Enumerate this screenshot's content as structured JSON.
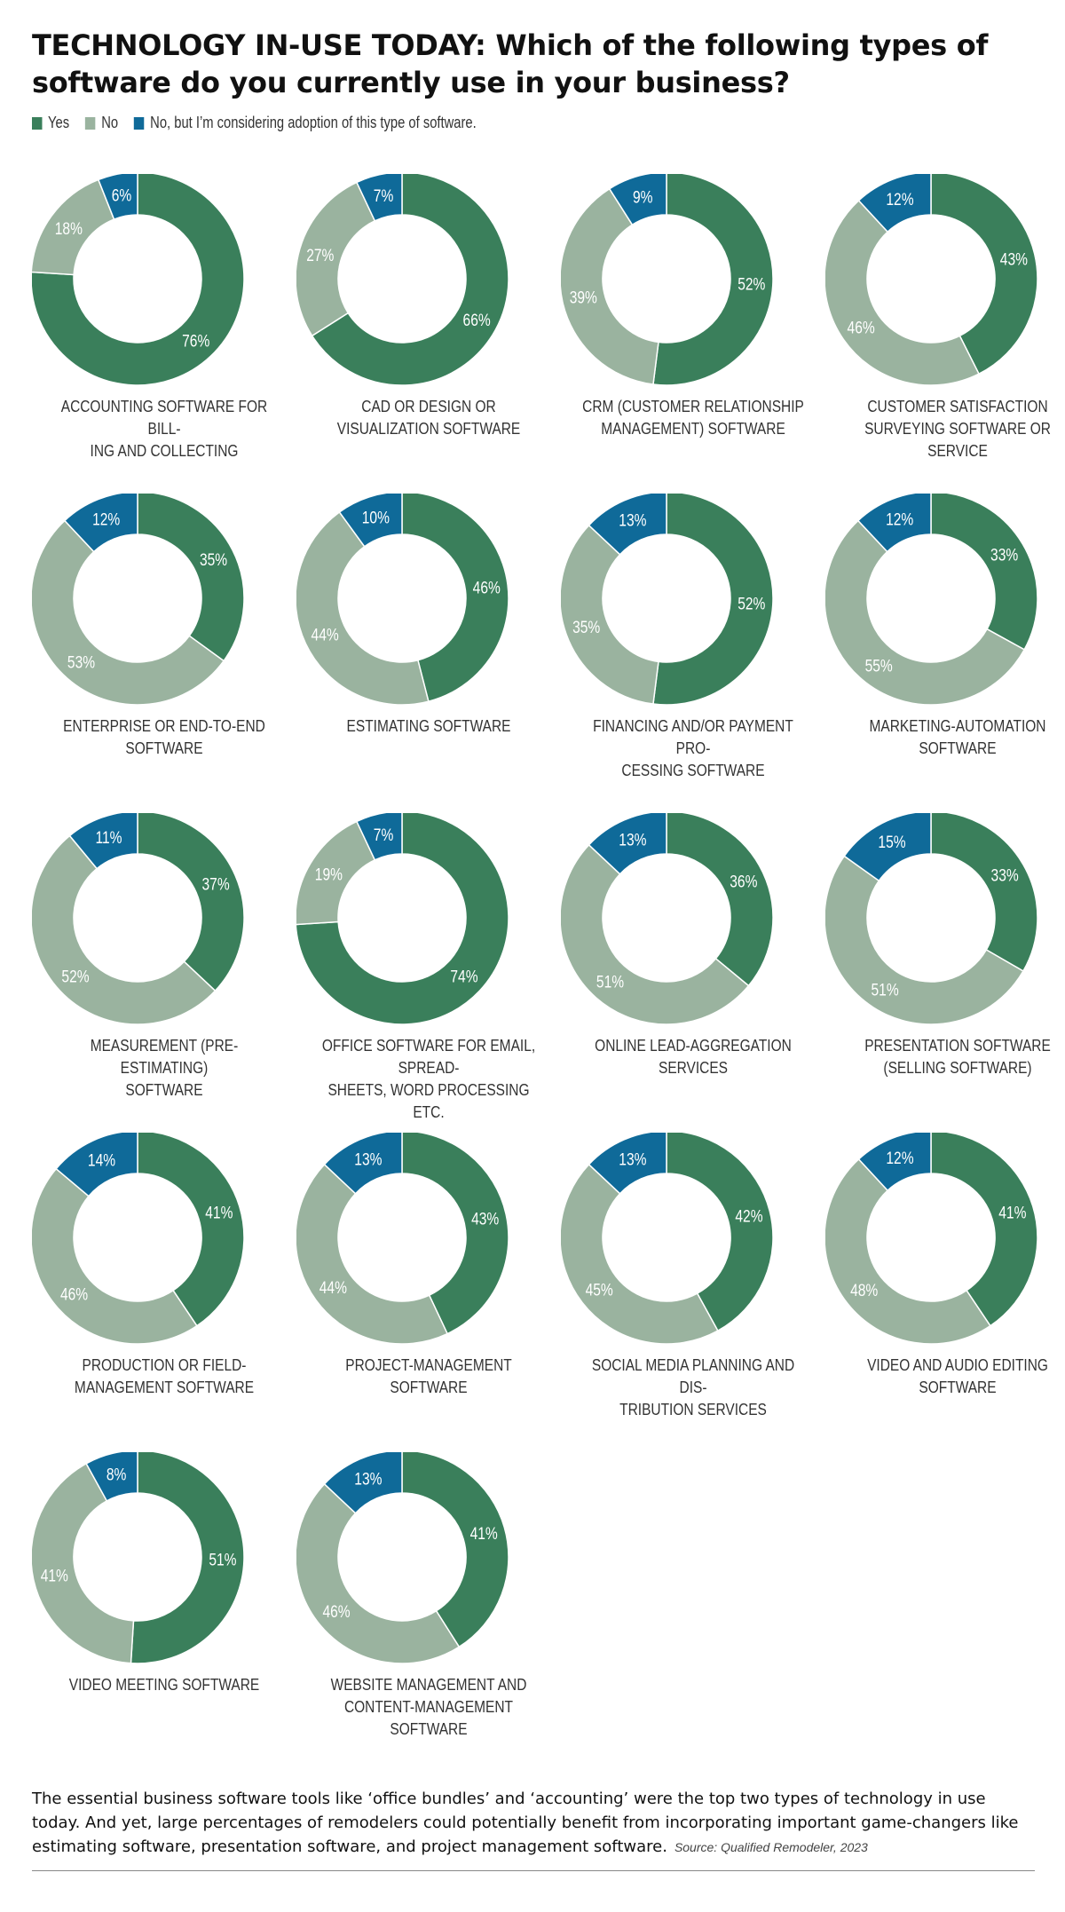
{
  "title": {
    "lead": "TECHNOLOGY IN-USE TODAY:",
    "rest": "Which of the following types of software do you currently use in your business?"
  },
  "colors": {
    "yes": "#3a7f5b",
    "no": "#9ab39f",
    "considering": "#0f6a99"
  },
  "legend": {
    "yes": "Yes",
    "no": "No",
    "considering": "No, but I’m considering adoption of this type of software."
  },
  "chart_data": {
    "type": "pie",
    "variant": "donut",
    "series_names": [
      "Yes",
      "No",
      "No, but I’m considering adoption of this type of software."
    ],
    "charts": [
      {
        "label": "ACCOUNTING SOFTWARE FOR BILL-\nING AND COLLECTING",
        "values": [
          76,
          18,
          6
        ]
      },
      {
        "label": "CAD OR DESIGN OR\nVISUALIZATION SOFTWARE",
        "values": [
          66,
          27,
          7
        ]
      },
      {
        "label": "CRM (CUSTOMER RELATIONSHIP\nMANAGEMENT) SOFTWARE",
        "values": [
          52,
          39,
          9
        ]
      },
      {
        "label": "CUSTOMER SATISFACTION\nSURVEYING SOFTWARE OR SERVICE",
        "values": [
          43,
          46,
          12
        ]
      },
      {
        "label": "ENTERPRISE OR END-TO-END\nSOFTWARE",
        "values": [
          35,
          53,
          12
        ]
      },
      {
        "label": "ESTIMATING SOFTWARE",
        "values": [
          46,
          44,
          10
        ]
      },
      {
        "label": "FINANCING AND/OR PAYMENT PRO-\nCESSING SOFTWARE",
        "values": [
          52,
          35,
          13
        ]
      },
      {
        "label": "MARKETING-AUTOMATION\nSOFTWARE",
        "values": [
          33,
          55,
          12
        ]
      },
      {
        "label": "MEASUREMENT (PRE-ESTIMATING)\nSOFTWARE",
        "values": [
          37,
          52,
          11
        ]
      },
      {
        "label": "OFFICE SOFTWARE FOR EMAIL, SPREAD-\nSHEETS, WORD PROCESSING ETC.",
        "values": [
          74,
          19,
          7
        ]
      },
      {
        "label": "ONLINE LEAD-AGGREGATION\nSERVICES",
        "values": [
          36,
          51,
          13
        ]
      },
      {
        "label": "PRESENTATION SOFTWARE\n(SELLING SOFTWARE)",
        "values": [
          33,
          51,
          15
        ]
      },
      {
        "label": "PRODUCTION OR FIELD-\nMANAGEMENT SOFTWARE",
        "values": [
          41,
          46,
          14
        ]
      },
      {
        "label": "PROJECT-MANAGEMENT SOFTWARE",
        "values": [
          43,
          44,
          13
        ]
      },
      {
        "label": "SOCIAL MEDIA PLANNING AND DIS-\nTRIBUTION SERVICES",
        "values": [
          42,
          45,
          13
        ]
      },
      {
        "label": "VIDEO AND AUDIO EDITING\nSOFTWARE",
        "values": [
          41,
          48,
          12
        ]
      },
      {
        "label": "VIDEO MEETING SOFTWARE",
        "values": [
          51,
          41,
          8
        ]
      },
      {
        "label": "WEBSITE MANAGEMENT AND\nCONTENT-MANAGEMENT SOFTWARE",
        "values": [
          41,
          46,
          13
        ]
      }
    ]
  },
  "footnote": {
    "text": "The essential business software tools like ‘office bundles’ and ‘accounting’ were the top two types of technology in use today. And yet, large percentages of remodelers could potentially benefit from incorporating important game-changers like estimating software, presentation software, and project management software.",
    "source": "Source: Qualified Remodeler, 2023"
  }
}
